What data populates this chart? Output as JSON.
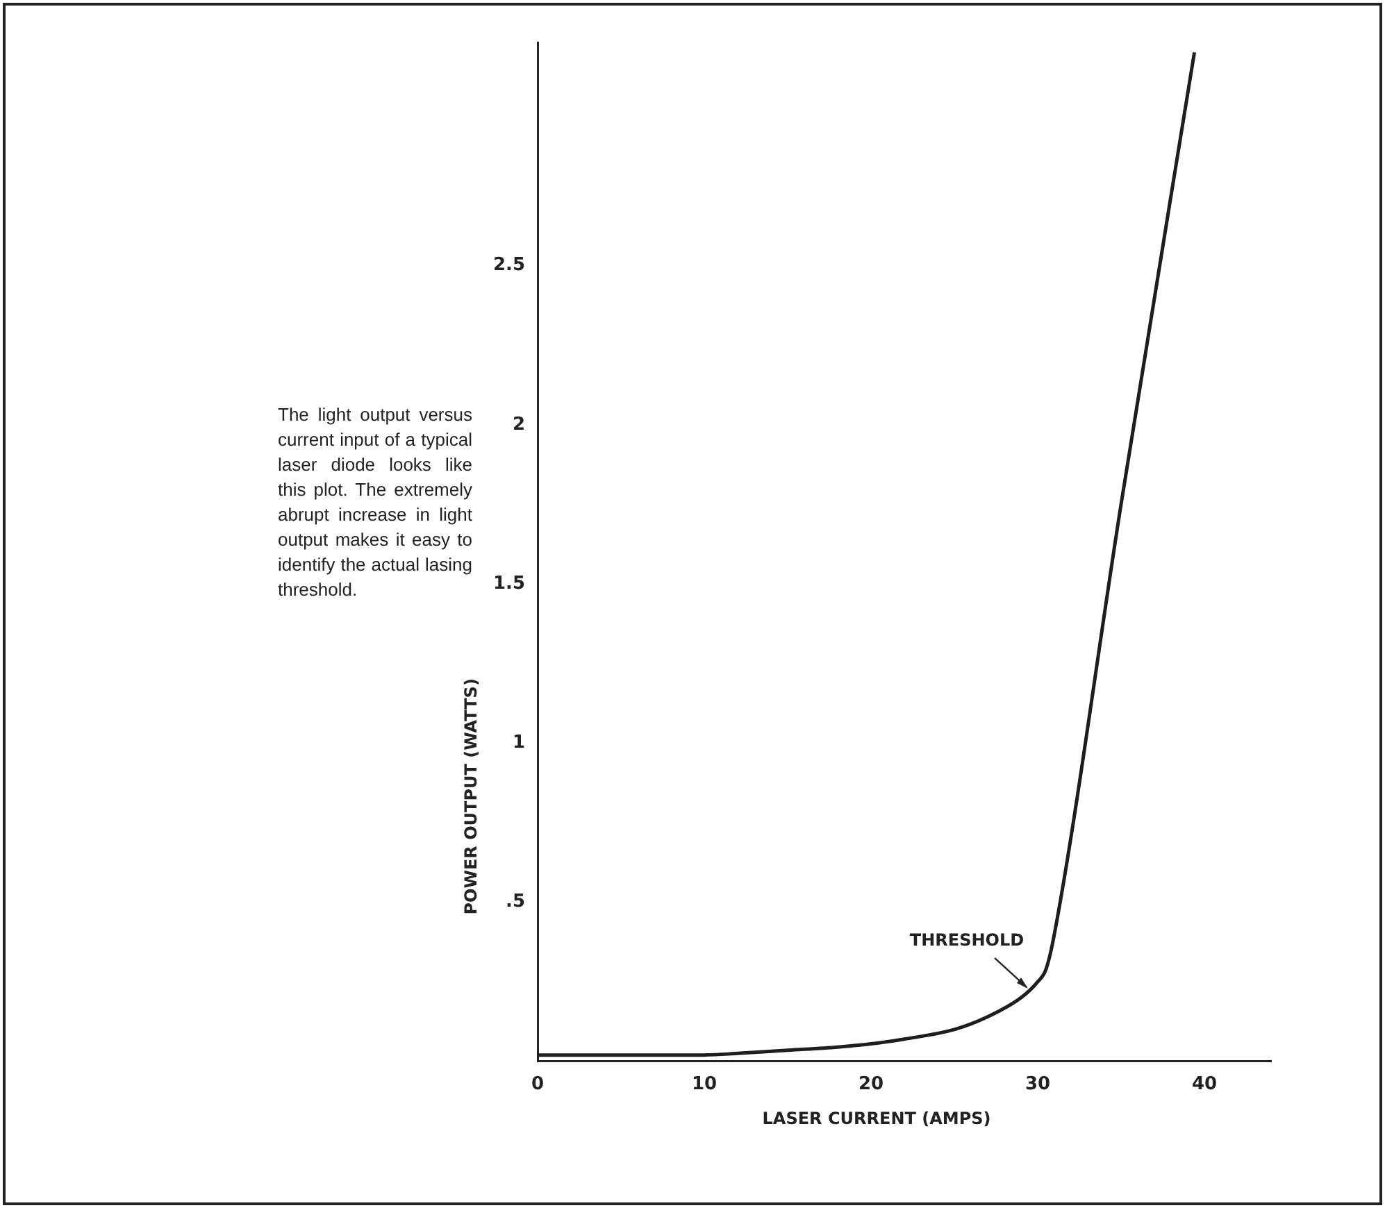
{
  "chart_data": {
    "type": "line",
    "xlabel": "LASER CURRENT (AMPS)",
    "ylabel": "POWER OUTPUT (WATTS)",
    "x": [
      0,
      5,
      10,
      12,
      15,
      18,
      20,
      22,
      25,
      27,
      29,
      30,
      30.5,
      31,
      35,
      39.4
    ],
    "series": [
      {
        "color": "#1e1e1e",
        "values": [
          0.02,
          0.02,
          0.02,
          0.025,
          0.035,
          0.045,
          0.055,
          0.07,
          0.1,
          0.14,
          0.2,
          0.25,
          0.29,
          0.4,
          1.75,
          3.17
        ]
      }
    ],
    "xlim": [
      0,
      44
    ],
    "xticks": [
      0,
      10,
      20,
      30,
      40
    ],
    "ylim": [
      0,
      3.2
    ],
    "yticks": [
      {
        "value": 0.5,
        "label": ".5"
      },
      1,
      1.5,
      2,
      2.5
    ],
    "grid": false,
    "legend": false,
    "marker": "none",
    "line_style": "solid",
    "annotations": [
      "The light output versus current input of a typical laser diode looks like this plot. The extremely abrupt increase in light output makes it easy to identify the actual lasing threshold.",
      {
        "text": "THRESHOLD",
        "x": 29.5,
        "y": 0.22
      }
    ]
  }
}
